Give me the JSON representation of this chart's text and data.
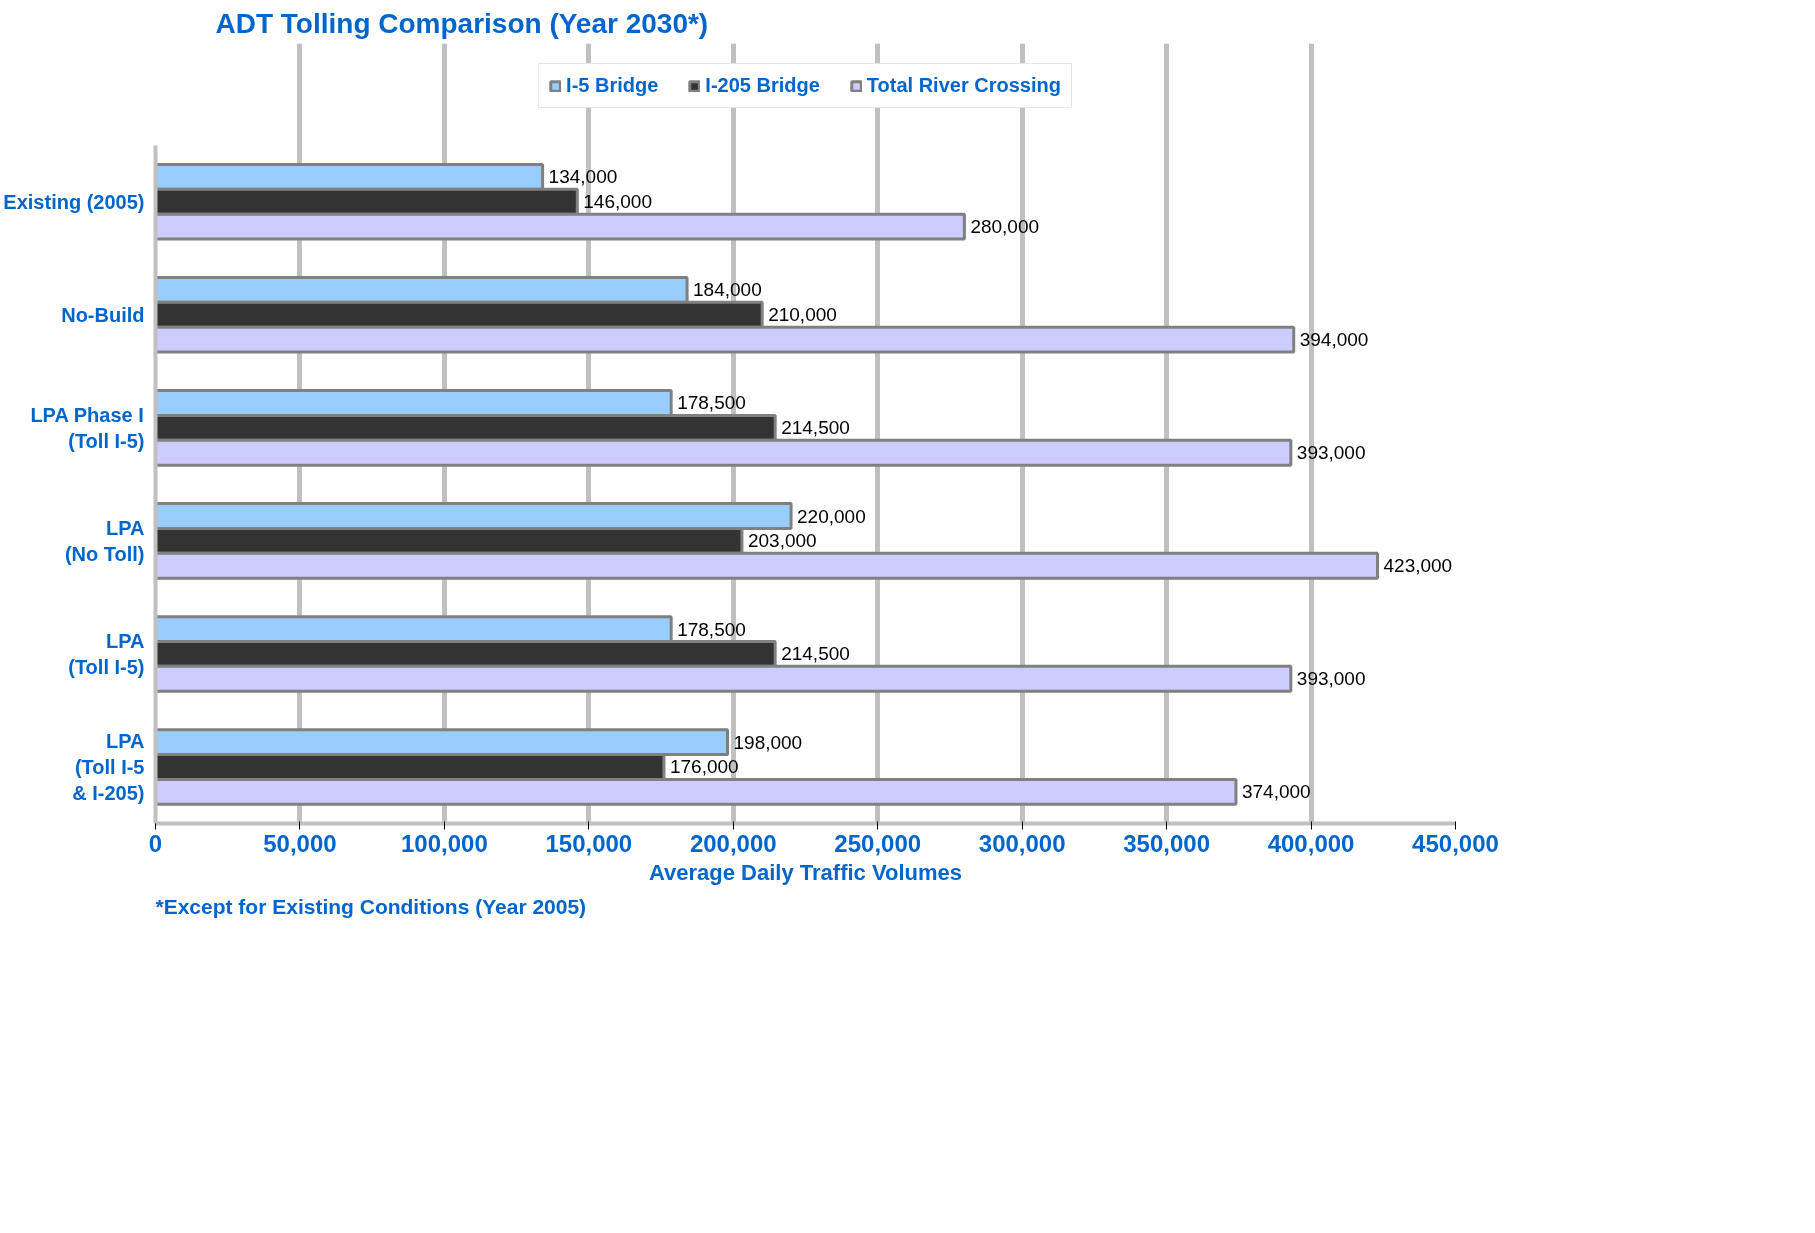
{
  "chart_data": {
    "type": "bar",
    "orientation": "horizontal",
    "title": "ADT Tolling Comparison (Year 2030*)",
    "xlabel": "Average Daily Traffic Volumes",
    "categories": [
      "Existing (2005)",
      "No-Build",
      "LPA Phase I\n(Toll I-5)",
      "LPA\n(No Toll)",
      "LPA\n(Toll I-5)",
      "LPA\n(Toll I-5\n& I-205)"
    ],
    "series": [
      {
        "name": "I-5 Bridge",
        "color": "#99ccff",
        "values": [
          134000,
          184000,
          178500,
          220000,
          178500,
          198000
        ],
        "value_labels": [
          "134,000",
          "184,000",
          "178,500",
          "220,000",
          "178,500",
          "198,000"
        ]
      },
      {
        "name": "I-205 Bridge",
        "color": "#333333",
        "values": [
          146000,
          210000,
          214500,
          203000,
          214500,
          176000
        ],
        "value_labels": [
          "146,000",
          "210,000",
          "214,500",
          "203,000",
          "214,500",
          "176,000"
        ]
      },
      {
        "name": "Total River Crossing",
        "color": "#ccccff",
        "values": [
          280000,
          394000,
          393000,
          423000,
          393000,
          374000
        ],
        "value_labels": [
          "280,000",
          "394,000",
          "393,000",
          "423,000",
          "393,000",
          "374,000"
        ]
      }
    ],
    "xlim": [
      0,
      450000
    ],
    "xticks": [
      0,
      {
        "value": 50000,
        "label": "50,000"
      },
      {
        "value": 100000,
        "label": "100,000"
      },
      {
        "value": 150000,
        "label": "150,000"
      },
      {
        "value": 200000,
        "label": "200,000"
      },
      {
        "value": 250000,
        "label": "250,000"
      },
      {
        "value": 300000,
        "label": "300,000"
      },
      {
        "value": 350000,
        "label": "350,000"
      },
      {
        "value": 400000,
        "label": "400,000"
      },
      {
        "value": 450000,
        "label": "450,000"
      }
    ],
    "grid": "x",
    "legend": "top",
    "annotations": [
      "*Except for Existing Conditions (Year 2005)"
    ]
  }
}
